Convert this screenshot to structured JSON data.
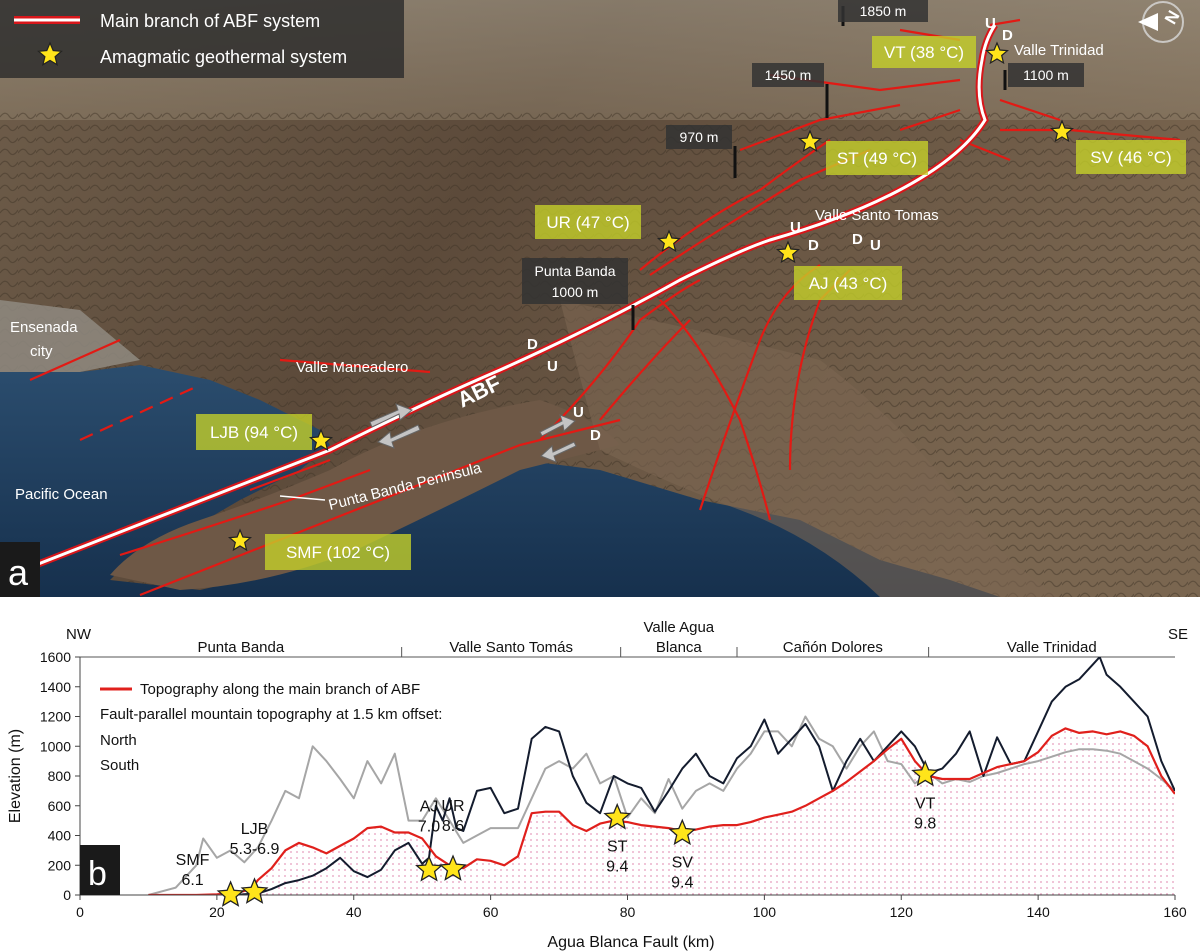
{
  "panel_a": {
    "tag": "a",
    "legend": {
      "fault": "Main branch of ABF system",
      "star": "Amagmatic geothermal system"
    },
    "compass": "N",
    "sites": {
      "vt": "VT (38 °C)",
      "st": "ST (49 °C)",
      "sv": "SV (46 °C)",
      "ur": "UR (47 °C)",
      "aj": "AJ (43 °C)",
      "ljb": "LJB (94 °C)",
      "smf": "SMF (102 °C)"
    },
    "places": {
      "valle_trinidad": "Valle Trinidad",
      "valle_santo_tomas": "Valle Santo Tomas",
      "ensenada_line1": "Ensenada",
      "ensenada_line2": "city",
      "valle_maneadero": "Valle Maneadero",
      "pacific": "Pacific Ocean",
      "peninsula": "Punta Banda Peninsula",
      "abf": "ABF"
    },
    "depths": {
      "d1850": "1850 m",
      "d1450": "1450 m",
      "d1100": "1100 m",
      "d970": "970 m",
      "pb_line1": "Punta Banda",
      "pb_line2": "1000 m"
    },
    "ud": {
      "u": "U",
      "d": "D"
    }
  },
  "chart_data": {
    "type": "line",
    "panel_tag": "b",
    "xlabel": "Agua Blanca Fault (km)",
    "ylabel": "Elevation (m)",
    "xlim": [
      0,
      160
    ],
    "ylim": [
      0,
      1600
    ],
    "xticks": [
      0,
      20,
      40,
      60,
      80,
      100,
      120,
      140,
      160
    ],
    "yticks": [
      0,
      200,
      400,
      600,
      800,
      1000,
      1200,
      1400,
      1600
    ],
    "grid": false,
    "direction_left": "NW",
    "direction_right": "SE",
    "regions": [
      {
        "label": "Punta Banda",
        "start": 0,
        "end": 47
      },
      {
        "label": "Valle Santo Tomás",
        "start": 47,
        "end": 79
      },
      {
        "label_line1": "Valle Agua",
        "label_line2": "Blanca",
        "start": 79,
        "end": 96
      },
      {
        "label": "Cañón Dolores",
        "start": 96,
        "end": 124
      },
      {
        "label": "Valle Trinidad",
        "start": 124,
        "end": 160
      }
    ],
    "legend": {
      "red": "Topography along the main branch of ABF",
      "heading": "Fault-parallel mountain topography at 1.5 km offset:",
      "north": "North",
      "south": "South"
    },
    "series": [
      {
        "key": "main",
        "color": "#e0201c",
        "x": [
          10,
          17,
          20,
          23,
          25,
          26,
          28,
          30,
          32,
          34,
          36,
          38,
          40,
          42,
          44,
          46,
          48,
          50,
          52,
          54,
          56,
          58,
          60,
          62,
          64,
          66,
          68,
          70,
          72,
          74,
          76,
          78,
          80,
          82,
          84,
          86,
          88,
          90,
          92,
          94,
          96,
          98,
          100,
          102,
          104,
          106,
          108,
          110,
          112,
          114,
          116,
          118,
          120,
          122,
          124,
          126,
          128,
          130,
          132,
          134,
          136,
          138,
          140,
          142,
          144,
          146,
          148,
          150,
          152,
          154,
          156,
          158,
          160
        ],
        "y": [
          0,
          0,
          5,
          15,
          40,
          100,
          180,
          300,
          350,
          320,
          280,
          330,
          380,
          450,
          460,
          420,
          420,
          380,
          260,
          200,
          180,
          240,
          230,
          200,
          260,
          550,
          560,
          560,
          470,
          430,
          480,
          500,
          490,
          470,
          460,
          450,
          430,
          440,
          460,
          470,
          470,
          490,
          520,
          540,
          560,
          600,
          650,
          700,
          760,
          830,
          900,
          980,
          1050,
          900,
          800,
          780,
          780,
          780,
          820,
          860,
          880,
          900,
          960,
          1070,
          1120,
          1090,
          1100,
          1080,
          1100,
          1070,
          1000,
          800,
          680
        ]
      },
      {
        "key": "north",
        "color": "#141c2e",
        "x": [
          20,
          23,
          24,
          26,
          28,
          30,
          32,
          34,
          36,
          38,
          40,
          42,
          44,
          46,
          48,
          50,
          51,
          52,
          53,
          54,
          55,
          56,
          58,
          60,
          62,
          64,
          66,
          68,
          70,
          72,
          74,
          76,
          78,
          80,
          82,
          84,
          86,
          88,
          90,
          92,
          94,
          96,
          98,
          100,
          102,
          104,
          106,
          108,
          110,
          112,
          114,
          116,
          118,
          120,
          122,
          124,
          126,
          128,
          130,
          132,
          134,
          136,
          138,
          140,
          142,
          144,
          146,
          148,
          149,
          150,
          152,
          154,
          156,
          158,
          160
        ],
        "y": [
          0,
          0,
          5,
          10,
          40,
          80,
          100,
          130,
          180,
          250,
          160,
          120,
          170,
          300,
          350,
          210,
          250,
          600,
          500,
          650,
          450,
          430,
          700,
          720,
          550,
          580,
          1050,
          1130,
          1100,
          800,
          620,
          550,
          800,
          750,
          720,
          560,
          700,
          850,
          950,
          800,
          750,
          920,
          1000,
          1180,
          950,
          1050,
          1150,
          1000,
          700,
          900,
          1050,
          900,
          1000,
          1100,
          1000,
          820,
          850,
          950,
          1100,
          800,
          1060,
          880,
          900,
          1100,
          1300,
          1400,
          1450,
          1550,
          1600,
          1480,
          1400,
          1300,
          1200,
          900,
          700
        ]
      },
      {
        "key": "south",
        "color": "#a6a6a6",
        "x": [
          10,
          14,
          17,
          18,
          20,
          22,
          24,
          26,
          28,
          30,
          32,
          34,
          36,
          38,
          40,
          42,
          44,
          46,
          48,
          50,
          52,
          54,
          56,
          58,
          60,
          62,
          64,
          66,
          68,
          70,
          72,
          74,
          76,
          78,
          80,
          82,
          84,
          86,
          88,
          90,
          92,
          94,
          96,
          98,
          100,
          102,
          104,
          106,
          108,
          110,
          112,
          114,
          116,
          118,
          120,
          122,
          124,
          126,
          128,
          130,
          132,
          134,
          136,
          138,
          140,
          142,
          144,
          146,
          148,
          150,
          152,
          154,
          156,
          158,
          160
        ],
        "y": [
          0,
          50,
          200,
          380,
          250,
          300,
          220,
          320,
          500,
          700,
          650,
          1000,
          900,
          780,
          650,
          900,
          750,
          950,
          500,
          500,
          650,
          500,
          350,
          400,
          450,
          450,
          450,
          650,
          850,
          900,
          850,
          950,
          750,
          800,
          520,
          650,
          550,
          780,
          580,
          700,
          750,
          700,
          850,
          950,
          1100,
          1100,
          1000,
          1200,
          1050,
          1000,
          850,
          1000,
          1100,
          900,
          880,
          750,
          820,
          750,
          780,
          760,
          800,
          820,
          850,
          880,
          900,
          930,
          960,
          980,
          980,
          970,
          950,
          900,
          850,
          780,
          700
        ]
      }
    ],
    "markers": [
      {
        "label_line1": "SMF",
        "label_line2": "6.1",
        "x": 22,
        "y": 0,
        "anchor": "left"
      },
      {
        "label_line1": "LJB",
        "label_line2": "5.3-6.9",
        "x": 25.5,
        "y": 20,
        "anchor": "above"
      },
      {
        "label_line1": "AJ",
        "label_line2": "7.0",
        "x": 51,
        "y": 170,
        "anchor": "above"
      },
      {
        "label_line1": "UR",
        "label_line2": "8.6",
        "x": 54.5,
        "y": 175,
        "anchor": "above"
      },
      {
        "label_line1": "ST",
        "label_line2": "9.4",
        "x": 78.5,
        "y": 520,
        "anchor": "below"
      },
      {
        "label_line1": "SV",
        "label_line2": "9.4",
        "x": 88,
        "y": 415,
        "anchor": "below"
      },
      {
        "label_line1": "VT",
        "label_line2": "9.8",
        "x": 123.5,
        "y": 810,
        "anchor": "below"
      }
    ]
  }
}
